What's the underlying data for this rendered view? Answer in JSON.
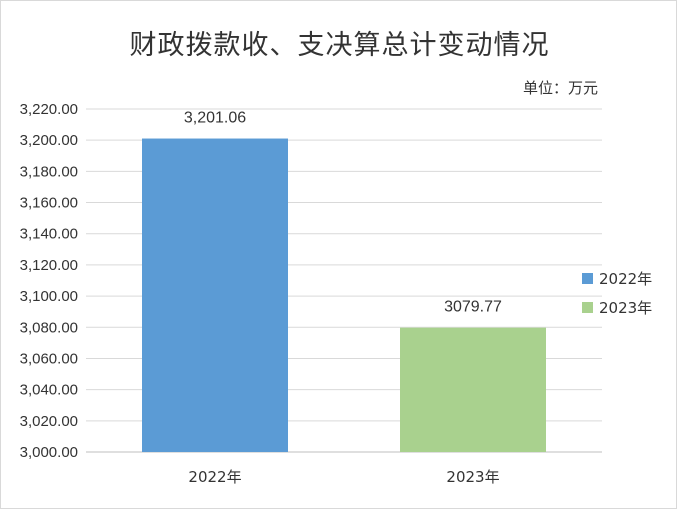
{
  "chart_data": {
    "type": "bar",
    "title": "财政拨款收、支决算总计变动情况",
    "unit_label": "单位：万元",
    "categories": [
      "2022年",
      "2023年"
    ],
    "values": [
      3201.06,
      3079.77
    ],
    "data_labels": [
      "3,201.06",
      "3079.77"
    ],
    "colors": [
      "#5b9bd5",
      "#a9d18e"
    ],
    "ylim": [
      3000,
      3220
    ],
    "ytick_step": 20,
    "ytick_labels": [
      "3,000.00",
      "3,020.00",
      "3,040.00",
      "3,060.00",
      "3,080.00",
      "3,100.00",
      "3,120.00",
      "3,140.00",
      "3,160.00",
      "3,180.00",
      "3,200.00",
      "3,220.00"
    ],
    "grid": true,
    "legend_position": "right",
    "legend": [
      "2022年",
      "2023年"
    ]
  }
}
